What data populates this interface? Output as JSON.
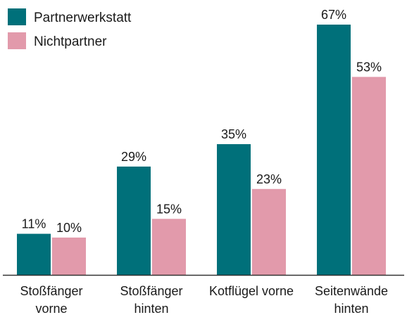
{
  "chart_data": {
    "type": "bar",
    "categories": [
      [
        "Stoßfänger",
        "vorne"
      ],
      [
        "Stoßfänger",
        "hinten"
      ],
      [
        "Kotflügel vorne"
      ],
      [
        "Seitenwände",
        "hinten"
      ]
    ],
    "series": [
      {
        "name": "Partnerwerkstatt",
        "values": [
          11,
          29,
          35,
          67
        ],
        "labels": [
          "11%",
          "29%",
          "35%",
          "67%"
        ],
        "color": "#00707a"
      },
      {
        "name": "Nichtpartner",
        "values": [
          10,
          15,
          23,
          53
        ],
        "labels": [
          "10%",
          "15%",
          "23%",
          "53%"
        ],
        "color": "#e29aab"
      }
    ],
    "ylim": [
      0,
      67
    ],
    "grid": false,
    "legend": "top-left"
  }
}
